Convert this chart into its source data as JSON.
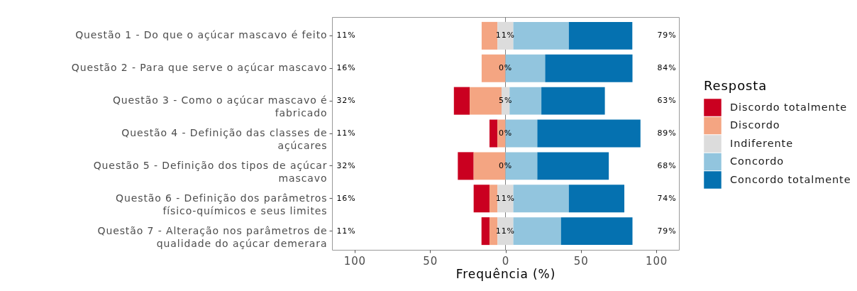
{
  "chart_data": {
    "type": "bar",
    "orientation": "horizontal",
    "categories": [
      "Questão 1 - Do que o açúcar mascavo é feito",
      "Questão 2 - Para que serve o açúcar mascavo",
      "Questão 3 - Como o açúcar mascavo é fabricado",
      "Questão 4 - Definição das classes de açúcares",
      "Questão 5 - Definição dos tipos de açúcar mascavo",
      "Questão 6 - Definição dos parâmetros físico-químicos e seus limites",
      "Questão 7 - Alteração nos parâmetros de qualidade do açúcar demerara"
    ],
    "series": [
      {
        "name": "Discordo totalmente",
        "color": "#ca0020",
        "values": [
          0,
          0,
          10.5,
          5.3,
          10.5,
          10.5,
          5.3
        ],
        "base": [
          null,
          null,
          -34.2,
          -10.6,
          -31.6,
          -21.1,
          -15.9
        ]
      },
      {
        "name": "Discordo",
        "color": "#f4a582",
        "values": [
          10.5,
          15.8,
          21.1,
          5.3,
          21.1,
          5.3,
          5.3
        ],
        "base": [
          -15.8,
          -15.8,
          -23.7,
          -5.3,
          -21.1,
          -10.6,
          -10.6
        ]
      },
      {
        "name": "Indiferente",
        "color": "#dcdcdc",
        "values": [
          10.5,
          0,
          5.3,
          0,
          0,
          10.5,
          10.5
        ],
        "base": [
          -5.3,
          null,
          -2.6,
          null,
          null,
          -5.3,
          -5.3
        ],
        "value_labels": [
          "11%",
          "0%",
          "5%",
          "0%",
          "0%",
          "11%",
          "11%"
        ]
      },
      {
        "name": "Concordo",
        "color": "#92c5de",
        "values": [
          36.8,
          26.3,
          21.1,
          21.1,
          21.1,
          36.8,
          31.6
        ],
        "base": [
          5.2,
          0,
          2.7,
          0,
          0,
          5.2,
          5.2
        ]
      },
      {
        "name": "Concordo totalmente",
        "color": "#0571b0",
        "values": [
          42.1,
          57.9,
          42.1,
          68.4,
          47.4,
          36.8,
          47.4
        ],
        "base": [
          42,
          26.3,
          23.8,
          21.1,
          21.1,
          42,
          36.8
        ]
      }
    ],
    "xlim": [
      -115,
      115
    ],
    "xticks": [
      {
        "value": -100,
        "label": "100"
      },
      {
        "value": -50,
        "label": "50"
      },
      0,
      50,
      100
    ],
    "xlabel": "Frequência (%)",
    "legend_title": "Resposta",
    "legend": "right",
    "ref_lines": [
      {
        "axis": "x",
        "value": 0,
        "color": "#7f7f7f"
      }
    ],
    "annotations": [
      "11%",
      "16%",
      "32%",
      "11%",
      "32%",
      "16%",
      "11%",
      "79%",
      "84%",
      "63%",
      "89%",
      "68%",
      "74%",
      "79%"
    ]
  }
}
